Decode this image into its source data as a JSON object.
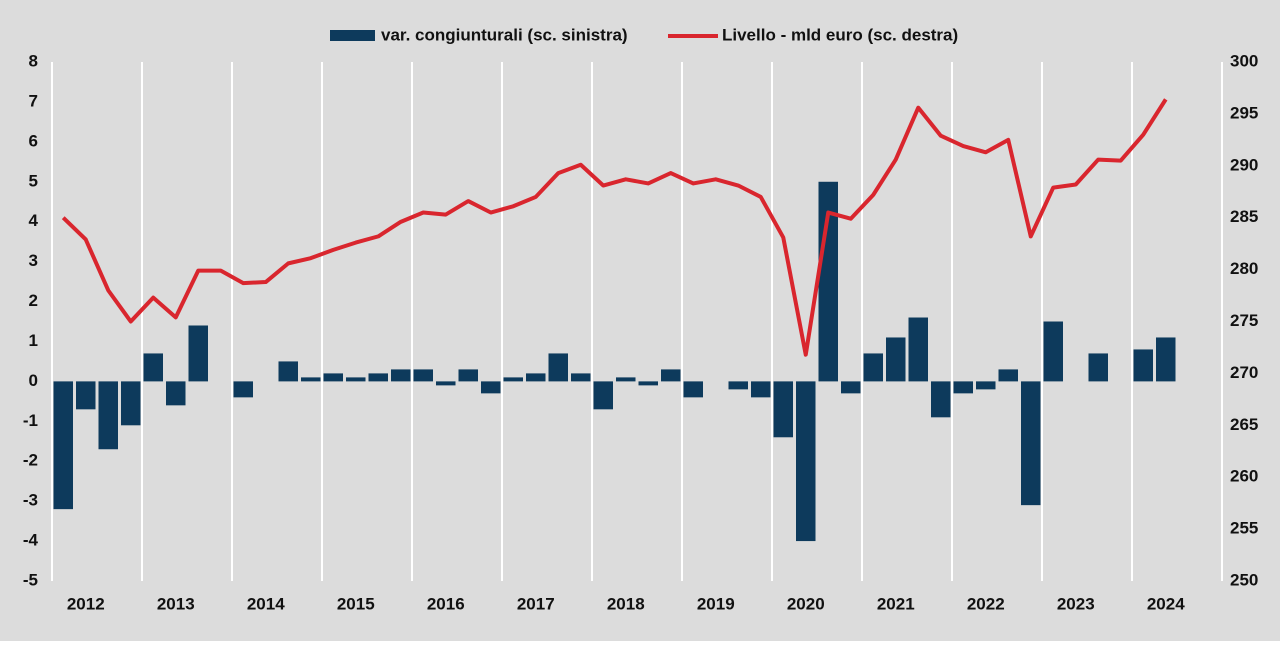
{
  "chart_data": {
    "type": "bar_line",
    "categories": [
      null,
      "2012",
      null,
      null,
      null,
      "2013",
      null,
      null,
      null,
      "2014",
      null,
      null,
      null,
      "2015",
      null,
      null,
      null,
      "2016",
      null,
      null,
      null,
      "2017",
      null,
      null,
      null,
      "2018",
      null,
      null,
      null,
      "2019",
      null,
      null,
      null,
      "2020",
      null,
      null,
      null,
      "2021",
      null,
      null,
      null,
      "2022",
      null,
      null,
      null,
      "2023",
      null,
      null,
      null,
      "2024",
      null,
      null
    ],
    "series": [
      {
        "name": "var. congiunturali (sc. sinistra)",
        "color": "#0d3a5c",
        "kind": "bar",
        "values": [
          -3.2,
          -0.7,
          -1.7,
          -1.1,
          0.7,
          -0.6,
          1.4,
          0.0,
          -0.4,
          0.0,
          0.5,
          0.1,
          0.2,
          0.1,
          0.2,
          0.3,
          0.3,
          -0.1,
          0.3,
          -0.3,
          0.1,
          0.2,
          0.7,
          0.2,
          -0.7,
          0.1,
          -0.1,
          0.3,
          -0.4,
          0.0,
          -0.2,
          -0.4,
          -1.4,
          -4.0,
          5.0,
          -0.3,
          0.7,
          1.1,
          1.6,
          -0.9,
          -0.3,
          -0.2,
          0.3,
          -3.1,
          1.5,
          0.0,
          0.7,
          0.0,
          0.8,
          1.1,
          null,
          null
        ]
      },
      {
        "name": "Livello - mld euro (sc. destra)",
        "color": "#d9262e",
        "kind": "line",
        "axis": "y2",
        "values": [
          285.0,
          282.9,
          278.0,
          275.0,
          277.3,
          275.4,
          279.9,
          279.9,
          278.7,
          278.8,
          280.6,
          281.1,
          281.9,
          282.6,
          283.2,
          284.6,
          285.5,
          285.3,
          286.6,
          285.5,
          286.1,
          287.0,
          289.3,
          290.1,
          288.1,
          288.7,
          288.3,
          289.3,
          288.3,
          288.7,
          288.1,
          287.0,
          283.1,
          271.8,
          285.5,
          284.9,
          287.2,
          290.6,
          295.6,
          292.9,
          291.9,
          291.3,
          292.5,
          283.2,
          287.9,
          288.2,
          290.6,
          290.5,
          293.0,
          296.4,
          null,
          null
        ]
      }
    ],
    "ylim": [
      -5,
      8
    ],
    "yticks": [
      -5,
      -4,
      -3,
      -2,
      -1,
      0,
      1,
      2,
      3,
      4,
      5,
      6,
      7,
      8
    ],
    "y2lim": [
      250,
      300
    ],
    "y2ticks": [
      250,
      255,
      260,
      265,
      270,
      275,
      280,
      285,
      290,
      295,
      300
    ],
    "background": "#dcdcdc",
    "grid_color": "#ffffff"
  }
}
